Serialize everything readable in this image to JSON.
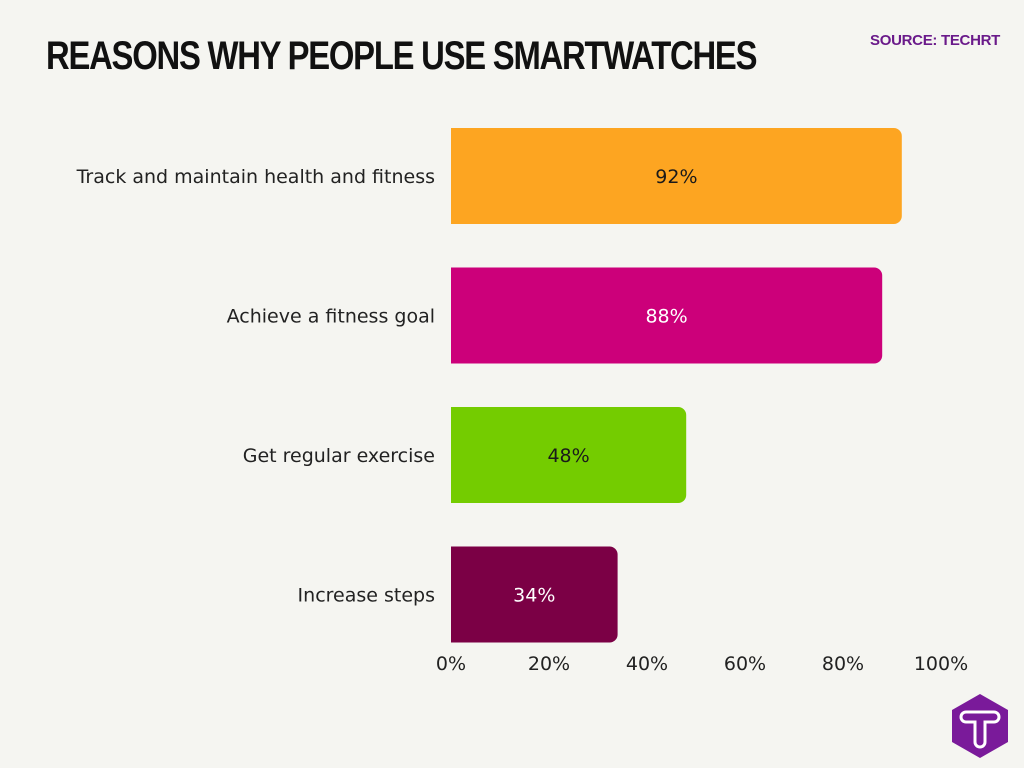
{
  "title": "REASONS WHY PEOPLE USE SMARTWATCHES",
  "source": "SOURCE: TECHRT",
  "logo_letter": "T",
  "chart_data": {
    "type": "bar",
    "orientation": "horizontal",
    "categories": [
      "Track and maintain health and fitness",
      "Achieve a fitness goal",
      "Get regular exercise",
      "Increase steps"
    ],
    "values": [
      92,
      88,
      48,
      34
    ],
    "data_labels": [
      "92%",
      "88%",
      "48%",
      "34%"
    ],
    "colors": [
      "#fda521",
      "#cc007a",
      "#74cc00",
      "#7b0045"
    ],
    "label_colors": [
      "#1a1a1a",
      "#ffffff",
      "#1a1a1a",
      "#ffffff"
    ],
    "xlim": [
      0,
      100
    ],
    "xticks": [
      "0%",
      "20%",
      "40%",
      "60%",
      "80%",
      "100%"
    ],
    "grid": false,
    "legend": "none"
  }
}
